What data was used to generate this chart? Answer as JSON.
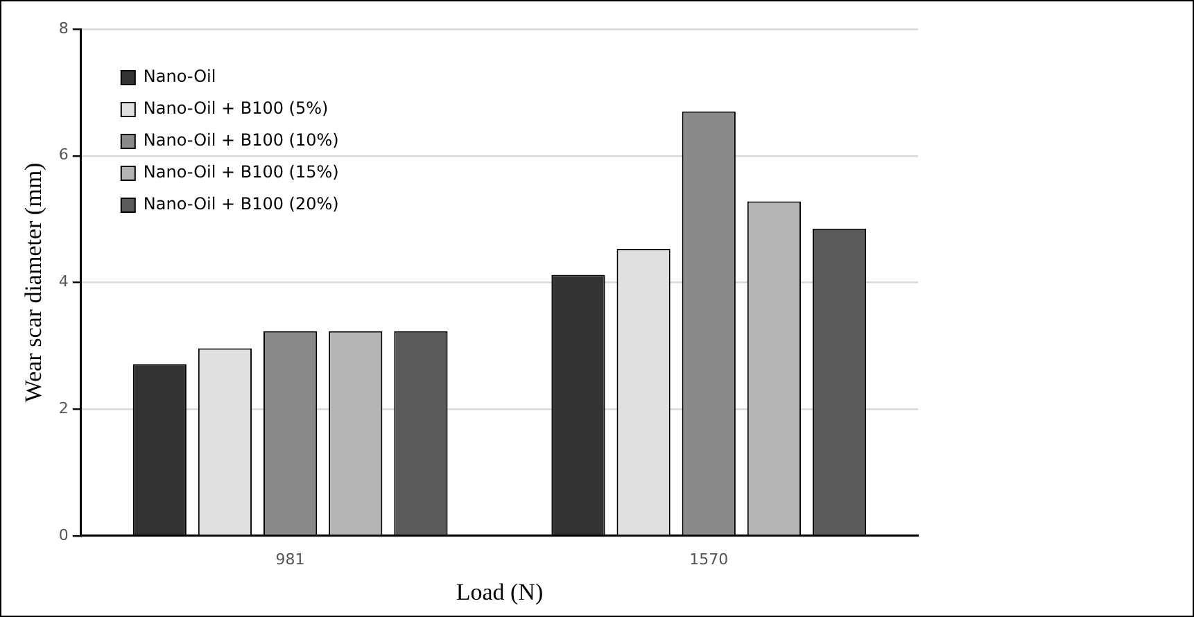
{
  "chart_data": {
    "type": "bar",
    "xlabel": "Load (N)",
    "ylabel": "Wear scar diameter (mm)",
    "categories": [
      "981",
      "1570"
    ],
    "series": [
      {
        "name": "Nano-Oil",
        "color": "#333333",
        "values": [
          2.71,
          4.12
        ]
      },
      {
        "name": "Nano-Oil + B100 (5%)",
        "color": "#e0e0e0",
        "values": [
          2.96,
          4.53
        ]
      },
      {
        "name": "Nano-Oil + B100 (10%)",
        "color": "#8a8a8a",
        "values": [
          3.23,
          6.7
        ]
      },
      {
        "name": "Nano-Oil + B100 (15%)",
        "color": "#b5b5b5",
        "values": [
          3.23,
          5.28
        ]
      },
      {
        "name": "Nano-Oil + B100 (20%)",
        "color": "#5a5a5a",
        "values": [
          3.23,
          4.85
        ]
      }
    ],
    "ylim": [
      0,
      8
    ],
    "yticks": [
      0,
      2,
      4,
      6,
      8
    ],
    "grid": "y",
    "legend": "top left"
  }
}
